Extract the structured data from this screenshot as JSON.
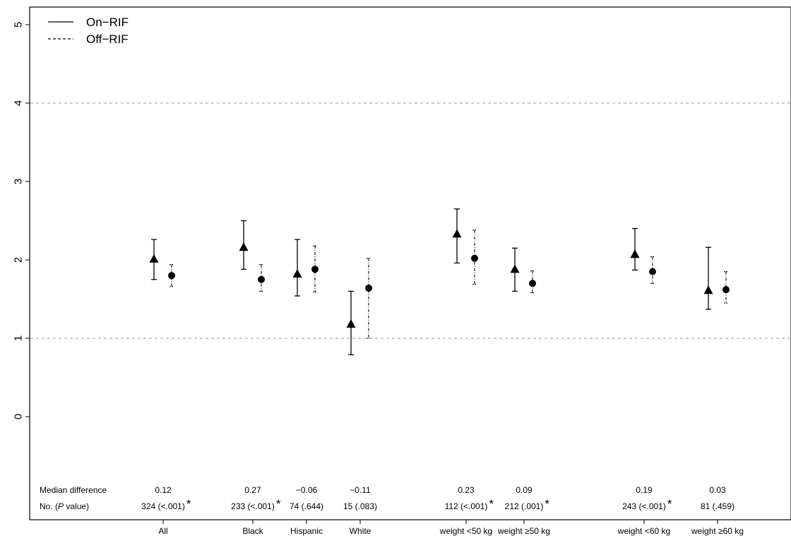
{
  "chart_data": {
    "type": "scatter",
    "title": "",
    "xlabel": "",
    "ylabel": "",
    "ylim": [
      -1,
      5.2
    ],
    "y_ticks": [
      "0",
      "1",
      "2",
      "3",
      "4",
      "5"
    ],
    "reference_lines": [
      1,
      4
    ],
    "grid": false,
    "legend_position": "top-left",
    "legend": [
      {
        "label": "On−RIF",
        "style": "solid"
      },
      {
        "label": "Off−RIF",
        "style": "dashed"
      }
    ],
    "series": [
      {
        "name": "On−RIF",
        "marker": "triangle"
      },
      {
        "name": "Off−RIF",
        "marker": "circle"
      }
    ],
    "row_labels": {
      "median_label": "Median difference",
      "n_label_prefix": "No. (",
      "n_label_italic": "P",
      "n_label_suffix": " value)"
    },
    "groups": [
      {
        "label": "All",
        "median_difference": "0.12",
        "n_p": "324 (<.001)",
        "significant": true,
        "on": {
          "y": 2.01,
          "lo": 1.75,
          "hi": 2.26
        },
        "off": {
          "y": 1.8,
          "lo": 1.66,
          "hi": 1.94
        }
      },
      {
        "label": "Black",
        "median_difference": "0.27",
        "n_p": "233 (<.001)",
        "significant": true,
        "on": {
          "y": 2.16,
          "lo": 1.88,
          "hi": 2.5
        },
        "off": {
          "y": 1.75,
          "lo": 1.6,
          "hi": 1.94
        }
      },
      {
        "label": "Hispanic",
        "median_difference": "−0.06",
        "n_p": "74 (.644)",
        "significant": false,
        "on": {
          "y": 1.82,
          "lo": 1.54,
          "hi": 2.26
        },
        "off": {
          "y": 1.88,
          "lo": 1.59,
          "hi": 2.18
        }
      },
      {
        "label": "White",
        "median_difference": "−0.11",
        "n_p": "15 (.083)",
        "significant": false,
        "on": {
          "y": 1.18,
          "lo": 0.79,
          "hi": 1.6
        },
        "off": {
          "y": 1.64,
          "lo": 1.0,
          "hi": 2.02
        }
      },
      {
        "label": "weight <50 kg",
        "median_difference": "0.23",
        "n_p": "112 (<.001)",
        "significant": true,
        "on": {
          "y": 2.33,
          "lo": 1.96,
          "hi": 2.65
        },
        "off": {
          "y": 2.02,
          "lo": 1.69,
          "hi": 2.38
        }
      },
      {
        "label": "weight ≥50 kg",
        "median_difference": "0.09",
        "n_p": "212 (.001)",
        "significant": true,
        "on": {
          "y": 1.88,
          "lo": 1.6,
          "hi": 2.15
        },
        "off": {
          "y": 1.7,
          "lo": 1.58,
          "hi": 1.86
        }
      },
      {
        "label": "weight <60 kg",
        "median_difference": "0.19",
        "n_p": "243 (<.001)",
        "significant": true,
        "on": {
          "y": 2.07,
          "lo": 1.87,
          "hi": 2.4
        },
        "off": {
          "y": 1.85,
          "lo": 1.7,
          "hi": 2.04
        }
      },
      {
        "label": "weight ≥60 kg",
        "median_difference": "0.03",
        "n_p": "81 (.459)",
        "significant": false,
        "on": {
          "y": 1.61,
          "lo": 1.37,
          "hi": 2.16
        },
        "off": {
          "y": 1.62,
          "lo": 1.45,
          "hi": 1.85
        }
      }
    ]
  }
}
